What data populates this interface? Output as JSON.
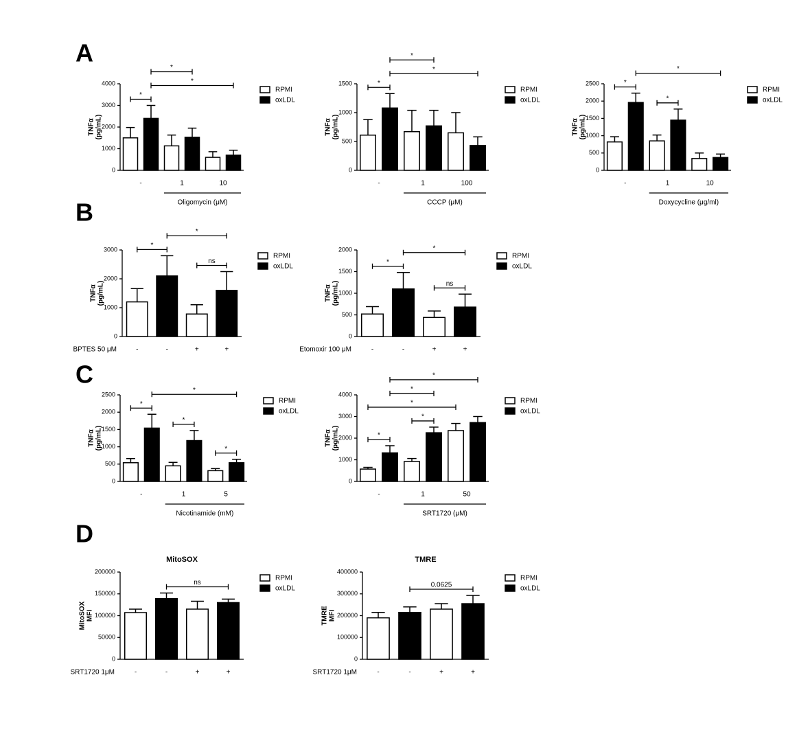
{
  "panels": [
    "A",
    "B",
    "C",
    "D"
  ],
  "chart_data": [
    {
      "type": "bar",
      "y_label": [
        "TNFα",
        "(pg/mL)"
      ],
      "categories": [
        "-",
        "1",
        "10"
      ],
      "x_label": "Oligomycin (μM)",
      "ylim": [
        0,
        4000
      ],
      "yticks": [
        0,
        1000,
        2000,
        3000,
        4000
      ],
      "series": [
        {
          "name": "RPMI",
          "color": "#ffffff",
          "values": [
            1500,
            1130,
            600
          ],
          "errors": [
            480,
            500,
            260
          ]
        },
        {
          "name": "oxLDL",
          "color": "#000000",
          "values": [
            2400,
            1530,
            700
          ],
          "errors": [
            600,
            420,
            230
          ]
        }
      ],
      "brackets": [
        {
          "label": "*",
          "bars": [
            0,
            1
          ]
        },
        {
          "label": "*",
          "bars": [
            1,
            5
          ]
        },
        {
          "label": "*",
          "bars": [
            1,
            3
          ]
        }
      ]
    },
    {
      "type": "bar",
      "y_label": [
        "TNFα",
        "(pg/mL)"
      ],
      "categories": [
        "-",
        "1",
        "100"
      ],
      "x_label": "CCCP (μM)",
      "ylim": [
        0,
        1500
      ],
      "yticks": [
        0,
        500,
        1000,
        1500
      ],
      "series": [
        {
          "name": "RPMI",
          "color": "#ffffff",
          "values": [
            610,
            670,
            650
          ],
          "errors": [
            270,
            370,
            350
          ]
        },
        {
          "name": "oxLDL",
          "color": "#000000",
          "values": [
            1080,
            770,
            430
          ],
          "errors": [
            250,
            270,
            150
          ]
        }
      ],
      "brackets": [
        {
          "label": "*",
          "bars": [
            0,
            1
          ]
        },
        {
          "label": "*",
          "bars": [
            1,
            5
          ]
        },
        {
          "label": "*",
          "bars": [
            1,
            3
          ]
        }
      ]
    },
    {
      "type": "bar",
      "y_label": [
        "TNFα",
        "(pg/mL)"
      ],
      "categories": [
        "-",
        "1",
        "10"
      ],
      "x_label": "Doxycycline (μg/ml)",
      "ylim": [
        0,
        2500
      ],
      "yticks": [
        0,
        500,
        1000,
        1500,
        2000,
        2500
      ],
      "series": [
        {
          "name": "RPMI",
          "color": "#ffffff",
          "values": [
            820,
            850,
            340
          ],
          "errors": [
            150,
            170,
            160
          ]
        },
        {
          "name": "oxLDL",
          "color": "#000000",
          "values": [
            1960,
            1450,
            370
          ],
          "errors": [
            270,
            320,
            100
          ]
        }
      ],
      "brackets": [
        {
          "label": "*",
          "bars": [
            0,
            1
          ]
        },
        {
          "label": "*",
          "bars": [
            2,
            3
          ]
        },
        {
          "label": "*",
          "bars": [
            1,
            5
          ]
        }
      ]
    },
    {
      "type": "bar",
      "y_label": [
        "TNFα",
        "(pg/mL)"
      ],
      "categories": [
        "-",
        "-",
        "+",
        "+"
      ],
      "row_label": "BPTES 50 μM",
      "ylim": [
        0,
        3000
      ],
      "yticks": [
        0,
        1000,
        2000,
        3000
      ],
      "series": [
        {
          "name": "RPMI",
          "color": "#ffffff",
          "values": [
            1200,
            null,
            780,
            null
          ],
          "errors": [
            460,
            null,
            320,
            null
          ]
        },
        {
          "name": "oxLDL",
          "color": "#000000",
          "values": [
            null,
            2100,
            null,
            1600
          ],
          "errors": [
            null,
            700,
            null,
            650
          ]
        }
      ],
      "brackets": [
        {
          "label": "ns",
          "bars": [
            2,
            3
          ]
        },
        {
          "label": "*",
          "bars": [
            0,
            1
          ]
        },
        {
          "label": "*",
          "bars": [
            1,
            3
          ]
        }
      ]
    },
    {
      "type": "bar",
      "y_label": [
        "TNFα",
        "(pg/mL)"
      ],
      "categories": [
        "-",
        "-",
        "+",
        "+"
      ],
      "row_label": "Etomoxir 100 μM",
      "ylim": [
        0,
        2000
      ],
      "yticks": [
        0,
        500,
        1000,
        1500,
        2000
      ],
      "series": [
        {
          "name": "RPMI",
          "color": "#ffffff",
          "values": [
            520,
            null,
            440,
            null
          ],
          "errors": [
            170,
            null,
            150,
            null
          ]
        },
        {
          "name": "oxLDL",
          "color": "#000000",
          "values": [
            null,
            1100,
            null,
            680
          ],
          "errors": [
            null,
            380,
            null,
            300
          ]
        }
      ],
      "brackets": [
        {
          "label": "ns",
          "bars": [
            2,
            3
          ]
        },
        {
          "label": "*",
          "bars": [
            0,
            1
          ]
        },
        {
          "label": "*",
          "bars": [
            1,
            3
          ]
        }
      ]
    },
    {
      "type": "bar",
      "y_label": [
        "TNFα",
        "(pg/mL)"
      ],
      "categories": [
        "-",
        "1",
        "5"
      ],
      "x_label": "Nicotinamide (mM)",
      "ylim": [
        0,
        2500
      ],
      "yticks": [
        0,
        500,
        1000,
        1500,
        2000,
        2500
      ],
      "series": [
        {
          "name": "RPMI",
          "color": "#ffffff",
          "values": [
            540,
            450,
            310
          ],
          "errors": [
            120,
            100,
            60
          ]
        },
        {
          "name": "oxLDL",
          "color": "#000000",
          "values": [
            1540,
            1180,
            540
          ],
          "errors": [
            400,
            290,
            100
          ]
        }
      ],
      "brackets": [
        {
          "label": "*",
          "bars": [
            0,
            1
          ]
        },
        {
          "label": "*",
          "bars": [
            2,
            3
          ]
        },
        {
          "label": "*",
          "bars": [
            4,
            5
          ]
        },
        {
          "label": "*",
          "bars": [
            1,
            5
          ]
        }
      ]
    },
    {
      "type": "bar",
      "y_label": [
        "TNFα",
        "(pg/mL)"
      ],
      "categories": [
        "-",
        "1",
        "50"
      ],
      "x_label": "SRT1720 (μM)",
      "ylim": [
        0,
        4000
      ],
      "yticks": [
        0,
        1000,
        2000,
        3000,
        4000
      ],
      "series": [
        {
          "name": "RPMI",
          "color": "#ffffff",
          "values": [
            570,
            920,
            2350
          ],
          "errors": [
            80,
            140,
            330
          ]
        },
        {
          "name": "oxLDL",
          "color": "#000000",
          "values": [
            1320,
            2250,
            2720
          ],
          "errors": [
            330,
            260,
            280
          ]
        }
      ],
      "brackets": [
        {
          "label": "*",
          "bars": [
            0,
            1
          ]
        },
        {
          "label": "*",
          "bars": [
            2,
            3
          ]
        },
        {
          "label": "*",
          "bars": [
            0,
            4
          ]
        },
        {
          "label": "*",
          "bars": [
            1,
            3
          ]
        },
        {
          "label": "*",
          "bars": [
            1,
            5
          ]
        }
      ]
    },
    {
      "type": "bar",
      "title": "MitoSOX",
      "y_label": [
        "MitoSOX",
        "MFI"
      ],
      "categories": [
        "-",
        "-",
        "+",
        "+"
      ],
      "row_label": "SRT1720 1μM",
      "ylim": [
        0,
        200000
      ],
      "yticks": [
        0,
        50000,
        100000,
        150000,
        200000
      ],
      "series": [
        {
          "name": "RPMI",
          "color": "#ffffff",
          "values": [
            107000,
            null,
            115000,
            null
          ],
          "errors": [
            8000,
            null,
            18000,
            null
          ]
        },
        {
          "name": "oxLDL",
          "color": "#000000",
          "values": [
            null,
            139000,
            null,
            130000
          ],
          "errors": [
            null,
            13000,
            null,
            8000
          ]
        }
      ],
      "brackets": [
        {
          "label": "ns",
          "bars": [
            1,
            3
          ]
        }
      ]
    },
    {
      "type": "bar",
      "title": "TMRE",
      "y_label": [
        "TMRE",
        "MFI"
      ],
      "categories": [
        "-",
        "-",
        "+",
        "+"
      ],
      "row_label": "SRT1720 1μM",
      "ylim": [
        0,
        400000
      ],
      "yticks": [
        0,
        100000,
        200000,
        300000,
        400000
      ],
      "series": [
        {
          "name": "RPMI",
          "color": "#ffffff",
          "values": [
            190000,
            null,
            230000,
            null
          ],
          "errors": [
            25000,
            null,
            25000,
            null
          ]
        },
        {
          "name": "oxLDL",
          "color": "#000000",
          "values": [
            null,
            215000,
            null,
            255000
          ],
          "errors": [
            null,
            25000,
            null,
            38000
          ]
        }
      ],
      "brackets": [
        {
          "label": "0.0625",
          "bars": [
            1,
            3
          ]
        }
      ]
    }
  ]
}
